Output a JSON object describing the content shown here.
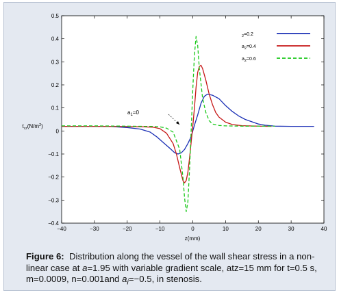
{
  "caption": {
    "label": "Figure 6:",
    "text_1": "Distribution along the vessel of the wall shear stress in a non-linear case at ",
    "alpha_symbol": "a",
    "text_2": "=1.95 with variable gradient scale, atz=15 mm for t=0.5 s, m=0.0009, n=0.001and ",
    "ai_symbol": "a",
    "ai_sub": "i",
    "text_3": "=−0.5, in stenosis."
  },
  "chart_data": {
    "type": "line",
    "title": "",
    "xlabel": "z(mm)",
    "ylabel": {
      "tau": "τ",
      "sub": "rz",
      "unit": "(N/m",
      "sup": "2",
      "close": ")"
    },
    "xlim": [
      -40,
      40
    ],
    "ylim": [
      -0.4,
      0.5
    ],
    "xticks": [
      -40,
      -30,
      -20,
      -10,
      0,
      10,
      20,
      30,
      40
    ],
    "yticks": [
      -0.4,
      -0.3,
      -0.2,
      -0.1,
      0,
      0.1,
      0.2,
      0.3,
      0.4,
      0.5
    ],
    "xtick_labels": [
      "−40",
      "−30",
      "−20",
      "−10",
      "0",
      "10",
      "20",
      "30",
      "40"
    ],
    "ytick_labels": [
      "−0.4",
      "−0.3",
      "−0.2",
      "−0.1",
      "0",
      "0.1",
      "0.2",
      "0.3",
      "0.4",
      "0.5"
    ],
    "grid": false,
    "legend_position": "top-right",
    "legend": [
      {
        "pre": "",
        "sub": "2",
        "post": "=0.2",
        "color": "#1a2fb5",
        "style": "solid"
      },
      {
        "pre": "a",
        "sub": "2",
        "post": "=0.4",
        "color": "#c61616",
        "style": "solid"
      },
      {
        "pre": "a",
        "sub": "2",
        "post": "=0.6",
        "color": "#19c819",
        "style": "dashed"
      }
    ],
    "annotation": {
      "pre": "a",
      "sub": "1",
      "post": "=0"
    },
    "series": [
      {
        "name": "a2=0.2",
        "color": "#1a2fb5",
        "style": "solid",
        "points": [
          [
            -40,
            0.02
          ],
          [
            -30,
            0.02
          ],
          [
            -25,
            0.019
          ],
          [
            -20,
            0.015
          ],
          [
            -16,
            0.008
          ],
          [
            -13,
            -0.005
          ],
          [
            -11,
            -0.025
          ],
          [
            -9,
            -0.05
          ],
          [
            -7,
            -0.075
          ],
          [
            -5.5,
            -0.095
          ],
          [
            -4.5,
            -0.1
          ],
          [
            -3.5,
            -0.095
          ],
          [
            -2.5,
            -0.08
          ],
          [
            -1.5,
            -0.055
          ],
          [
            -0.5,
            -0.025
          ],
          [
            0.5,
            0.025
          ],
          [
            1.5,
            0.07
          ],
          [
            2.5,
            0.12
          ],
          [
            3.5,
            0.15
          ],
          [
            4.5,
            0.16
          ],
          [
            6,
            0.155
          ],
          [
            8,
            0.14
          ],
          [
            10,
            0.11
          ],
          [
            12,
            0.085
          ],
          [
            14,
            0.065
          ],
          [
            16,
            0.05
          ],
          [
            18,
            0.04
          ],
          [
            20,
            0.03
          ],
          [
            22,
            0.025
          ],
          [
            25,
            0.021
          ],
          [
            30,
            0.02
          ],
          [
            37,
            0.02
          ]
        ]
      },
      {
        "name": "a2=0.4",
        "color": "#c61616",
        "style": "solid",
        "points": [
          [
            -40,
            0.02
          ],
          [
            -30,
            0.02
          ],
          [
            -20,
            0.019
          ],
          [
            -15,
            0.018
          ],
          [
            -12,
            0.016
          ],
          [
            -10,
            0.01
          ],
          [
            -8,
            -0.01
          ],
          [
            -6,
            -0.055
          ],
          [
            -5,
            -0.1
          ],
          [
            -4,
            -0.16
          ],
          [
            -3,
            -0.215
          ],
          [
            -2.5,
            -0.225
          ],
          [
            -2,
            -0.215
          ],
          [
            -1.5,
            -0.18
          ],
          [
            -1,
            -0.12
          ],
          [
            -0.5,
            -0.05
          ],
          [
            0,
            0.02
          ],
          [
            0.5,
            0.1
          ],
          [
            1,
            0.19
          ],
          [
            1.5,
            0.255
          ],
          [
            2,
            0.28
          ],
          [
            2.5,
            0.285
          ],
          [
            3,
            0.27
          ],
          [
            4,
            0.22
          ],
          [
            5,
            0.16
          ],
          [
            6,
            0.115
          ],
          [
            7,
            0.08
          ],
          [
            8,
            0.06
          ],
          [
            10,
            0.038
          ],
          [
            12,
            0.028
          ],
          [
            15,
            0.023
          ],
          [
            20,
            0.021
          ],
          [
            24,
            0.02
          ]
        ]
      },
      {
        "name": "a2=0.6",
        "color": "#19c819",
        "style": "dashed",
        "points": [
          [
            -40,
            0.022
          ],
          [
            -30,
            0.022
          ],
          [
            -20,
            0.021
          ],
          [
            -15,
            0.02
          ],
          [
            -12,
            0.02
          ],
          [
            -10,
            0.018
          ],
          [
            -8,
            0.012
          ],
          [
            -6,
            -0.005
          ],
          [
            -4,
            -0.08
          ],
          [
            -3,
            -0.2
          ],
          [
            -2.5,
            -0.29
          ],
          [
            -2,
            -0.35
          ],
          [
            -1.5,
            -0.31
          ],
          [
            -1,
            -0.17
          ],
          [
            -0.5,
            0.0
          ],
          [
            0,
            0.18
          ],
          [
            0.5,
            0.33
          ],
          [
            1,
            0.41
          ],
          [
            1.5,
            0.37
          ],
          [
            2,
            0.27
          ],
          [
            3,
            0.14
          ],
          [
            4,
            0.08
          ],
          [
            5,
            0.045
          ],
          [
            6,
            0.03
          ],
          [
            8,
            0.024
          ],
          [
            10,
            0.022
          ],
          [
            15,
            0.021
          ],
          [
            20,
            0.021
          ],
          [
            25,
            0.021
          ]
        ]
      }
    ]
  }
}
